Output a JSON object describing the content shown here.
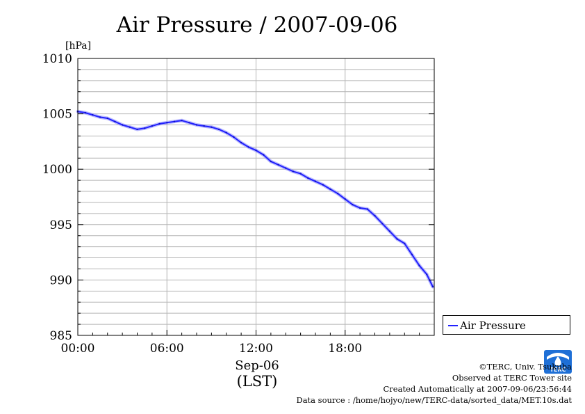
{
  "chart_data": {
    "type": "line",
    "title": "Air Pressure / 2007-09-06",
    "ylabel": "[hPa]",
    "xlabel": "Sep-06",
    "xlabel_sub": "(LST)",
    "ylim": [
      985,
      1010
    ],
    "yticks": [
      "985",
      "990",
      "995",
      "1000",
      "1005",
      "1010"
    ],
    "xlim": [
      0,
      24
    ],
    "xticks": [
      {
        "x": 0,
        "label": "00:00"
      },
      {
        "x": 6,
        "label": "06:00"
      },
      {
        "x": 12,
        "label": "12:00"
      },
      {
        "x": 18,
        "label": "18:00"
      }
    ],
    "grid": true,
    "legend_position": "right",
    "series": [
      {
        "name": "Air Pressure",
        "color": "#2222ff",
        "x": [
          0,
          0.5,
          1,
          1.5,
          2,
          2.5,
          3,
          3.5,
          4,
          4.5,
          5,
          5.5,
          6,
          6.5,
          7,
          7.5,
          8,
          8.5,
          9,
          9.5,
          10,
          10.5,
          11,
          11.5,
          12,
          12.5,
          13,
          13.5,
          14,
          14.5,
          15,
          15.5,
          16,
          16.5,
          17,
          17.5,
          18,
          18.5,
          19,
          19.5,
          20,
          20.5,
          21,
          21.5,
          22,
          22.5,
          23,
          23.5,
          23.9
        ],
        "values": [
          1005.2,
          1005.1,
          1004.9,
          1004.7,
          1004.6,
          1004.3,
          1004.0,
          1003.8,
          1003.6,
          1003.7,
          1003.9,
          1004.1,
          1004.2,
          1004.3,
          1004.4,
          1004.2,
          1004.0,
          1003.9,
          1003.8,
          1003.6,
          1003.3,
          1002.9,
          1002.4,
          1002.0,
          1001.7,
          1001.3,
          1000.7,
          1000.4,
          1000.1,
          999.8,
          999.6,
          999.2,
          998.9,
          998.6,
          998.2,
          997.8,
          997.3,
          996.8,
          996.5,
          996.4,
          995.8,
          995.1,
          994.4,
          993.7,
          993.3,
          992.3,
          991.3,
          990.5,
          989.4
        ]
      }
    ]
  },
  "credits": {
    "copyright": "©TERC, Univ. Tsukuba",
    "observed": "Observed at TERC Tower site",
    "created": "Created Automatically at 2007-09-06/23:56:44",
    "source": "Data source : /home/hojyo/new/TERC-data/sorted_data/MET.10s.dat"
  },
  "logo": {
    "text": "TERC",
    "color": "#1e6fd6"
  }
}
